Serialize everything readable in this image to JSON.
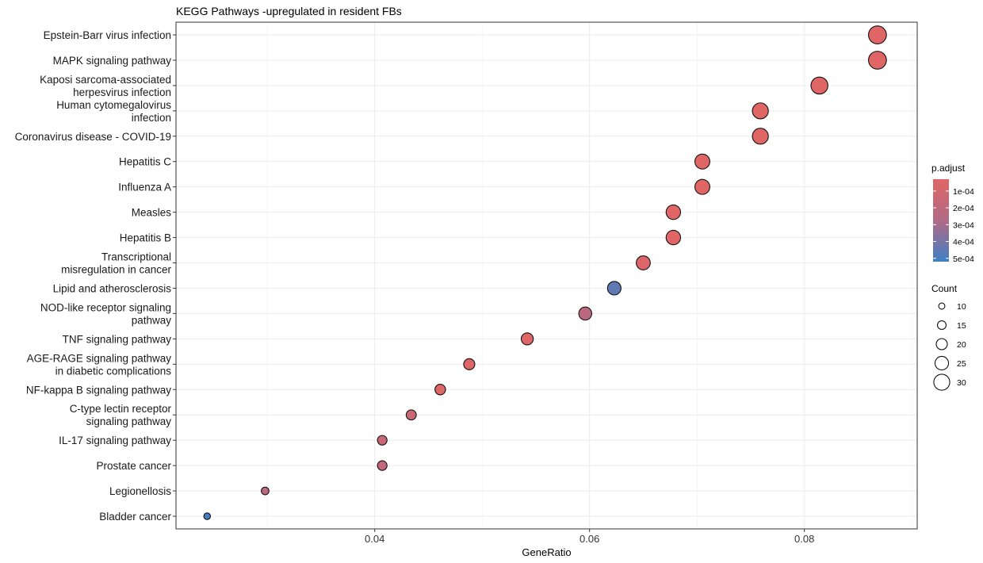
{
  "chart_data": {
    "type": "scatter",
    "title": "KEGG Pathways -upregulated in resident FBs",
    "xlabel": "GeneRatio",
    "ylabel": "",
    "xlim": [
      0.0215,
      0.0905
    ],
    "xticks": [
      0.04,
      0.06,
      0.08
    ],
    "xtick_labels": [
      "0.04",
      "0.06",
      "0.08"
    ],
    "grid": true,
    "legend_position": "right",
    "categories": [
      "Epstein-Barr virus infection",
      "MAPK signaling pathway",
      "Kaposi sarcoma-associated\nherpesvirus infection",
      "Human cytomegalovirus\ninfection",
      "Coronavirus disease - COVID-19",
      "Hepatitis C",
      "Influenza A",
      "Measles",
      "Hepatitis B",
      "Transcriptional\nmisregulation in cancer",
      "Lipid and atherosclerosis",
      "NOD-like receptor signaling\npathway",
      "TNF signaling pathway",
      "AGE-RAGE signaling pathway\nin diabetic complications",
      "NF-kappa B signaling pathway",
      "C-type lectin receptor\nsignaling pathway",
      "IL-17 signaling pathway",
      "Prostate cancer",
      "Legionellosis",
      "Bladder cancer"
    ],
    "points": [
      {
        "pathway": "Epstein-Barr virus infection",
        "gene_ratio": 0.0868,
        "count": 32,
        "p_adjust": 3e-05
      },
      {
        "pathway": "MAPK signaling pathway",
        "gene_ratio": 0.0868,
        "count": 32,
        "p_adjust": 3e-05
      },
      {
        "pathway": "Kaposi sarcoma-associated herpesvirus infection",
        "gene_ratio": 0.0814,
        "count": 30,
        "p_adjust": 3e-05
      },
      {
        "pathway": "Human cytomegalovirus infection",
        "gene_ratio": 0.0759,
        "count": 28,
        "p_adjust": 3e-05
      },
      {
        "pathway": "Coronavirus disease - COVID-19",
        "gene_ratio": 0.0759,
        "count": 28,
        "p_adjust": 3e-05
      },
      {
        "pathway": "Hepatitis C",
        "gene_ratio": 0.0705,
        "count": 26,
        "p_adjust": 3e-05
      },
      {
        "pathway": "Influenza A",
        "gene_ratio": 0.0705,
        "count": 26,
        "p_adjust": 3e-05
      },
      {
        "pathway": "Measles",
        "gene_ratio": 0.0678,
        "count": 25,
        "p_adjust": 3e-05
      },
      {
        "pathway": "Hepatitis B",
        "gene_ratio": 0.0678,
        "count": 25,
        "p_adjust": 3e-05
      },
      {
        "pathway": "Transcriptional misregulation in cancer",
        "gene_ratio": 0.065,
        "count": 24,
        "p_adjust": 5e-05
      },
      {
        "pathway": "Lipid and atherosclerosis",
        "gene_ratio": 0.0623,
        "count": 23,
        "p_adjust": 0.00045
      },
      {
        "pathway": "NOD-like receptor signaling pathway",
        "gene_ratio": 0.0596,
        "count": 22,
        "p_adjust": 0.00022
      },
      {
        "pathway": "TNF signaling pathway",
        "gene_ratio": 0.0542,
        "count": 20,
        "p_adjust": 4e-05
      },
      {
        "pathway": "AGE-RAGE signaling pathway in diabetic complications",
        "gene_ratio": 0.0488,
        "count": 18,
        "p_adjust": 3e-05
      },
      {
        "pathway": "NF-kappa B signaling pathway",
        "gene_ratio": 0.0461,
        "count": 17,
        "p_adjust": 4e-05
      },
      {
        "pathway": "C-type lectin receptor signaling pathway",
        "gene_ratio": 0.0434,
        "count": 16,
        "p_adjust": 0.00013
      },
      {
        "pathway": "IL-17 signaling pathway",
        "gene_ratio": 0.0407,
        "count": 15,
        "p_adjust": 0.00015
      },
      {
        "pathway": "Prostate cancer",
        "gene_ratio": 0.0407,
        "count": 15,
        "p_adjust": 0.00018
      },
      {
        "pathway": "Legionellosis",
        "gene_ratio": 0.0298,
        "count": 11,
        "p_adjust": 0.0002
      },
      {
        "pathway": "Bladder cancer",
        "gene_ratio": 0.0244,
        "count": 9,
        "p_adjust": 0.0005
      }
    ],
    "color_legend": {
      "title": "p.adjust",
      "ticks": [
        0.0001,
        0.0002,
        0.0003,
        0.0004,
        0.0005
      ],
      "tick_labels": [
        "1e-04",
        "2e-04",
        "3e-04",
        "4e-04",
        "5e-04"
      ],
      "range": [
        3e-05,
        0.00052
      ],
      "colors": {
        "low": "#e06666",
        "mid": "#b06a86",
        "high": "#3f7fc4"
      }
    },
    "size_legend": {
      "title": "Count",
      "values": [
        10,
        15,
        20,
        25,
        30
      ],
      "labels": [
        "10",
        "15",
        "20",
        "25",
        "30"
      ]
    }
  }
}
